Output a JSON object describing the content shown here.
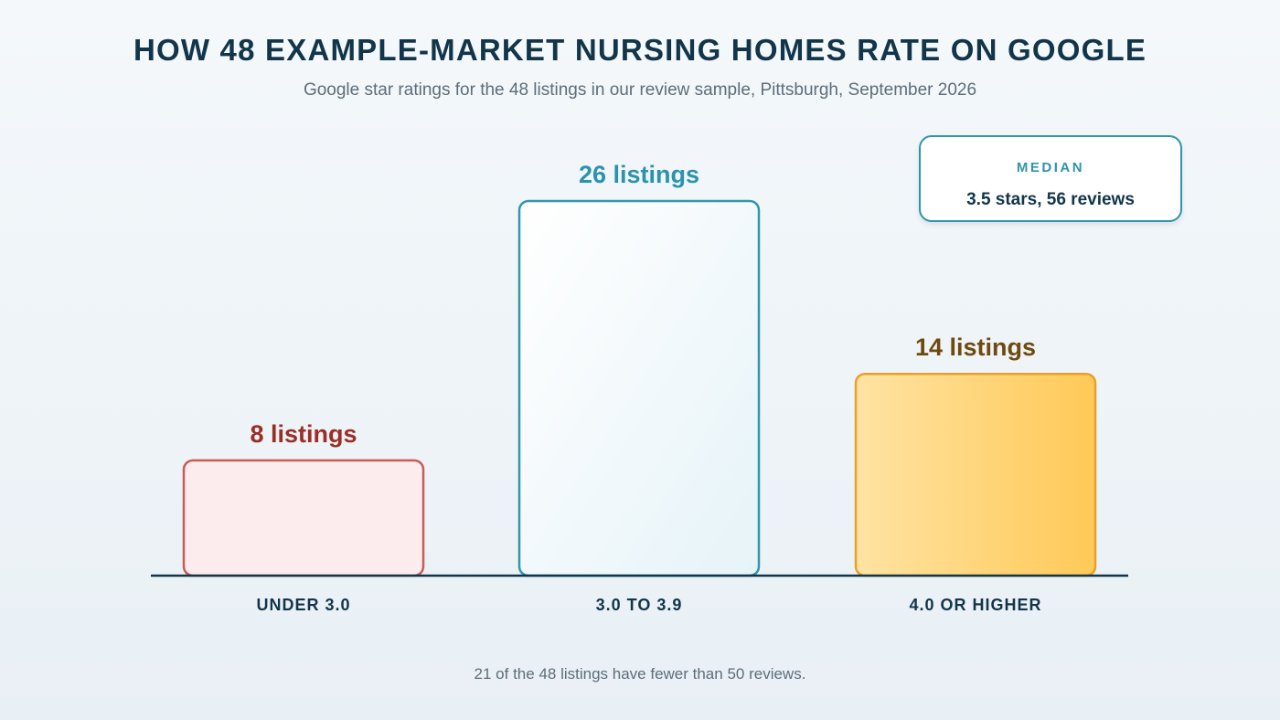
{
  "chart_data": {
    "type": "bar",
    "title": "HOW 48 EXAMPLE-MARKET NURSING HOMES RATE ON GOOGLE",
    "subtitle": "Google star ratings for the 48 listings in our review sample, Pittsburgh, September 2026",
    "categories": [
      "UNDER 3.0",
      "3.0 TO 3.9",
      "4.0 OR HIGHER"
    ],
    "values": [
      8,
      26,
      14
    ],
    "data_labels": [
      "8 listings",
      "26 listings",
      "14 listings"
    ],
    "xlabel": "",
    "ylabel": "",
    "ylim": [
      0,
      26
    ],
    "grid": false,
    "colors": {
      "under": {
        "fill": "#fdeced",
        "stroke": "#c95c55",
        "label": "#9b2e25"
      },
      "mid": {
        "fill": "#f2f8fb",
        "stroke": "#3296ae",
        "label": "#2b93ad"
      },
      "high": {
        "fill": "#ffd16a",
        "stroke": "#e9a02a",
        "label": "#6e4a0e"
      },
      "axis": "#12354a"
    }
  },
  "median": {
    "label": "MEDIAN",
    "value": "3.5 stars, 56 reviews"
  },
  "note": "21 of the 48 listings have fewer than 50 reviews."
}
